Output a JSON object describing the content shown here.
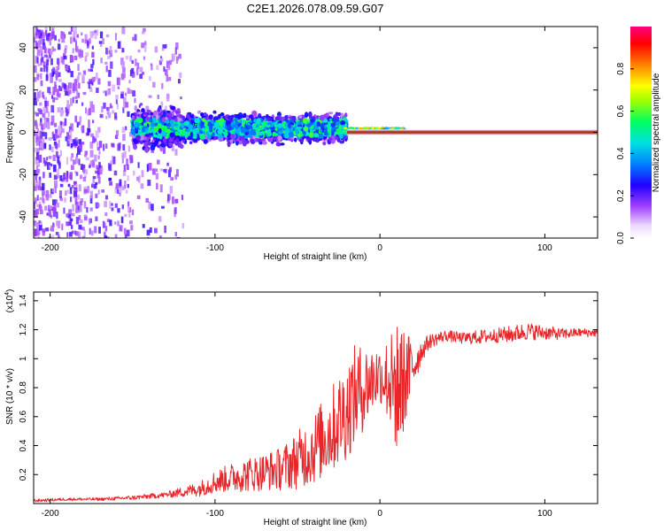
{
  "title": "C2E1.2026.078.09.59.G07",
  "chart_data": [
    {
      "type": "heatmap",
      "name": "spectrogram",
      "xlabel": "Height of straight line (km)",
      "ylabel": "Frequency (Hz)",
      "xlim": [
        -210,
        132
      ],
      "ylim": [
        -50,
        50
      ],
      "xticks": [
        -200,
        -100,
        0,
        100
      ],
      "yticks": [
        -40,
        -20,
        0,
        20,
        40
      ],
      "colorbar": {
        "label": "Normalized spectral amplitude",
        "range": [
          0,
          1
        ],
        "ticks": [
          "0.0",
          "0.2",
          "0.4",
          "0.6",
          "0.8"
        ],
        "tick_values": [
          0,
          0.2,
          0.4,
          0.6,
          0.8
        ]
      },
      "line": {
        "description": "steady carrier",
        "x_start": -20,
        "x_end": 132,
        "frequency_hz": 0
      },
      "regions": [
        {
          "x_start": -210,
          "x_end": -125,
          "f_spread_hz": 50,
          "mean_amplitude": 0.2
        },
        {
          "x_start": -150,
          "x_end": -20,
          "f_spread_hz": 8,
          "mean_amplitude": 0.35
        },
        {
          "x_start": -20,
          "x_end": 15,
          "f_spread_hz": 3,
          "mean_amplitude": 0.6
        }
      ]
    },
    {
      "type": "line",
      "name": "snr",
      "xlabel": "Height of straight line (km)",
      "ylabel": "SNR (10 * v/v)",
      "y_multiplier": "(x10",
      "y_multiplier_exp": "4",
      "y_multiplier_close": ")",
      "xlim": [
        -210,
        132
      ],
      "ylim": [
        0,
        1.46
      ],
      "xticks": [
        -200,
        -100,
        0,
        100
      ],
      "yticks": [
        0.2,
        0.4,
        0.6,
        0.8,
        1.0,
        1.2,
        1.4
      ],
      "ytick_labels": [
        "0.2",
        "0.4",
        "0.6",
        "0.8",
        "1.0",
        "1.2",
        "1.4"
      ],
      "color": "#e8262a",
      "series": [
        {
          "name": "SNR",
          "x": [
            -210,
            -190,
            -170,
            -150,
            -130,
            -110,
            -100,
            -90,
            -80,
            -70,
            -60,
            -50,
            -40,
            -30,
            -20,
            -15,
            -10,
            -5,
            0,
            5,
            10,
            15,
            20,
            25,
            30,
            40,
            50,
            60,
            70,
            80,
            90,
            100,
            110,
            120,
            132
          ],
          "values": [
            0.02,
            0.03,
            0.03,
            0.04,
            0.06,
            0.1,
            0.15,
            0.18,
            0.2,
            0.22,
            0.24,
            0.3,
            0.38,
            0.5,
            0.65,
            0.75,
            0.8,
            0.85,
            0.9,
            0.85,
            0.8,
            0.85,
            0.95,
            1.05,
            1.12,
            1.16,
            1.14,
            1.15,
            1.16,
            1.17,
            1.19,
            1.18,
            1.17,
            1.18,
            1.18
          ],
          "noise_amp": [
            0.01,
            0.01,
            0.01,
            0.015,
            0.02,
            0.05,
            0.08,
            0.1,
            0.12,
            0.13,
            0.15,
            0.2,
            0.25,
            0.3,
            0.35,
            0.35,
            0.3,
            0.25,
            0.2,
            0.3,
            0.45,
            0.35,
            0.2,
            0.08,
            0.05,
            0.04,
            0.04,
            0.05,
            0.05,
            0.06,
            0.06,
            0.05,
            0.04,
            0.03,
            0.03
          ]
        }
      ]
    }
  ]
}
